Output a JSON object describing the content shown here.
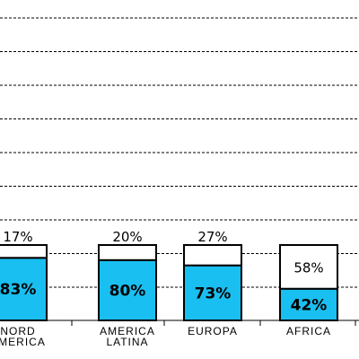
{
  "chart_data": {
    "type": "bar",
    "stacked": true,
    "title": "",
    "xlabel": "",
    "ylabel": "",
    "grid": true,
    "categories": [
      [
        "NORD",
        "AMERICA"
      ],
      [
        "AMERICA",
        "LATINA"
      ],
      [
        "EUROPA"
      ],
      [
        "AFRICA"
      ]
    ],
    "series": [
      {
        "color": "#19bff0",
        "values": [
          83,
          80,
          73,
          42
        ],
        "labels": [
          "83%",
          "80%",
          "73%",
          "42%"
        ]
      },
      {
        "color": "#ffffff",
        "values": [
          17,
          20,
          27,
          58
        ],
        "labels": [
          "17%",
          "20%",
          "27%",
          "58%"
        ]
      }
    ],
    "ylim": [
      0,
      100
    ]
  }
}
